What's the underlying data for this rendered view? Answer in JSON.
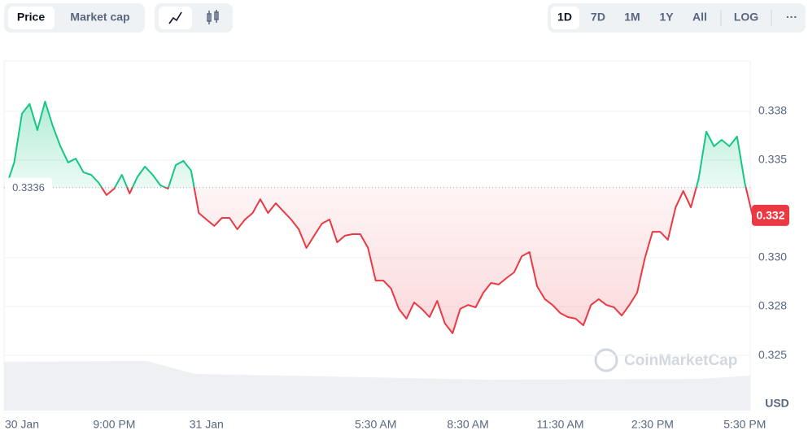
{
  "toolbar": {
    "tabs": [
      "Price",
      "Market cap"
    ],
    "ranges": [
      "1D",
      "7D",
      "1M",
      "1Y",
      "All"
    ],
    "log": "LOG",
    "more": "···"
  },
  "chart_data": {
    "type": "line",
    "categories": [
      null,
      null,
      "30 Jan",
      null,
      null,
      null,
      null,
      null,
      null,
      null,
      null,
      null,
      null,
      null,
      "9:00 PM",
      null,
      null,
      null,
      null,
      null,
      null,
      null,
      null,
      null,
      null,
      null,
      "31 Jan",
      null,
      null,
      null,
      null,
      null,
      null,
      null,
      null,
      null,
      null,
      null,
      null,
      null,
      null,
      null,
      null,
      null,
      null,
      null,
      null,
      null,
      "5:30 AM",
      null,
      null,
      null,
      null,
      null,
      null,
      null,
      null,
      null,
      null,
      null,
      "8:30 AM",
      null,
      null,
      null,
      null,
      null,
      null,
      null,
      null,
      null,
      null,
      null,
      "11:30 AM",
      null,
      null,
      null,
      null,
      null,
      null,
      null,
      null,
      null,
      null,
      null,
      "2:30 PM",
      null,
      null,
      null,
      null,
      null,
      null,
      null,
      null,
      null,
      null,
      null,
      "5:30 PM",
      null
    ],
    "values": [
      0.33371,
      0.33488,
      0.33738,
      0.33788,
      0.33654,
      0.338,
      0.33675,
      0.33571,
      0.33488,
      0.33508,
      0.33438,
      0.33425,
      0.33383,
      0.33321,
      0.33354,
      0.33425,
      0.33329,
      0.33413,
      0.33467,
      0.33425,
      0.33371,
      0.33354,
      0.33475,
      0.33496,
      0.33446,
      0.33229,
      0.33196,
      0.33163,
      0.33204,
      0.33204,
      0.33146,
      0.33196,
      0.33229,
      0.333,
      0.33229,
      0.33279,
      0.33238,
      0.33196,
      0.33146,
      0.3305,
      0.33113,
      0.33175,
      0.33196,
      0.33079,
      0.33113,
      0.33121,
      0.33121,
      0.3305,
      0.32883,
      0.32883,
      0.32842,
      0.32738,
      0.32688,
      0.32771,
      0.32738,
      0.32696,
      0.32779,
      0.32663,
      0.32613,
      0.32738,
      0.32758,
      0.32746,
      0.32821,
      0.32871,
      0.32863,
      0.32896,
      0.32925,
      0.33008,
      0.33029,
      0.32854,
      0.32788,
      0.32758,
      0.32717,
      0.32696,
      0.32688,
      0.32654,
      0.32758,
      0.32788,
      0.32758,
      0.32746,
      0.32704,
      0.32758,
      0.32821,
      0.32996,
      0.33133,
      0.33133,
      0.33092,
      0.33258,
      0.33342,
      0.33258,
      0.33404,
      0.33646,
      0.33571,
      0.33604,
      0.33571,
      0.33621,
      0.33383,
      0.33217
    ],
    "baseline": 0.3336,
    "last_price_label": "0.332",
    "up_color": "#16c784",
    "down_color": "#ea3943",
    "ylim": [
      0.32217,
      0.34008
    ],
    "yticks": [
      {
        "value": 0.3375,
        "label": "0.338"
      },
      0.335,
      {
        "value": 0.33,
        "label": "0.330"
      },
      {
        "value": 0.3275,
        "label": "0.328"
      },
      0.325
    ],
    "grid": true,
    "currency_label": "USD",
    "watermark": "CoinMarketCap"
  }
}
